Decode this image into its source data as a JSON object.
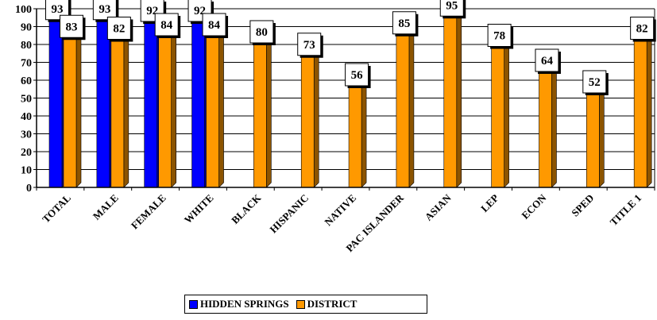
{
  "chart_data": {
    "type": "bar",
    "categories": [
      "TOTAL",
      "MALE",
      "FEMALE",
      "WHITE",
      "BLACK",
      "HISPANIC",
      "NATIVE",
      "PAC ISLANDER",
      "ASIAN",
      "LEP",
      "ECON",
      "SPED",
      "TITLE 1"
    ],
    "series": [
      {
        "name": "HIDDEN SPRINGS",
        "color": "#0000FF",
        "values": [
          93,
          93,
          92,
          92,
          null,
          null,
          null,
          null,
          null,
          null,
          null,
          null,
          null
        ]
      },
      {
        "name": "DISTRICT",
        "color": "#FF9900",
        "values": [
          83,
          82,
          84,
          84,
          80,
          73,
          56,
          85,
          95,
          78,
          64,
          52,
          82
        ]
      }
    ],
    "ylim": [
      0,
      100
    ],
    "yticks": [
      0,
      10,
      20,
      30,
      40,
      50,
      60,
      70,
      80,
      90,
      100
    ],
    "grid": true,
    "legend_position": "bottom",
    "title": "",
    "xlabel": "",
    "ylabel": ""
  }
}
